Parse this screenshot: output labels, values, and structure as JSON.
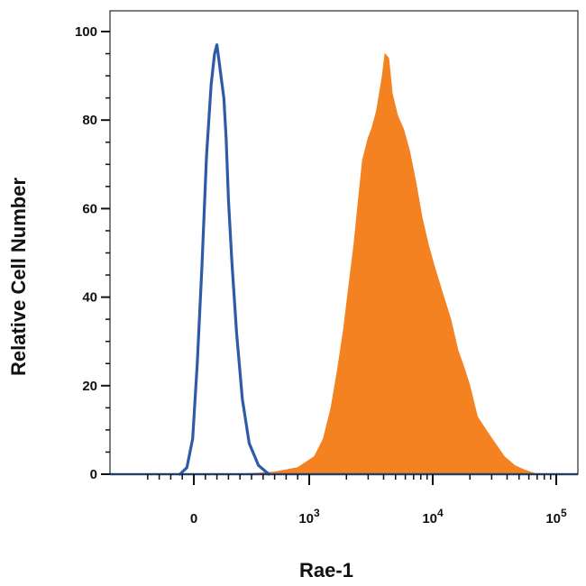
{
  "chart_data": {
    "type": "area",
    "title": "",
    "xlabel": "Rae-1",
    "ylabel": "Relative Cell Number",
    "x_scale": "biexponential",
    "xlim": [
      -500,
      200000
    ],
    "ylim": [
      0,
      100
    ],
    "y_ticks": [
      {
        "value": 0,
        "label": "0"
      },
      {
        "value": 20,
        "label": "20"
      },
      {
        "value": 40,
        "label": "40"
      },
      {
        "value": 60,
        "label": "60"
      },
      {
        "value": 80,
        "label": "80"
      },
      {
        "value": 100,
        "label": "100"
      }
    ],
    "x_ticks": [
      {
        "value": 0,
        "base": "0",
        "exp": ""
      },
      {
        "value": 1000,
        "base": "10",
        "exp": "3"
      },
      {
        "value": 10000,
        "base": "10",
        "exp": "4"
      },
      {
        "value": 100000,
        "base": "10",
        "exp": "5"
      }
    ],
    "grid": false,
    "legend": "none",
    "series": [
      {
        "style": "filled",
        "color": "#f58220",
        "x": [
          400,
          700,
          900,
          1100,
          1300,
          1500,
          1700,
          1900,
          2100,
          2300,
          2500,
          2700,
          3000,
          3200,
          3500,
          3700,
          3900,
          4100,
          4400,
          4700,
          5200,
          5800,
          6500,
          7300,
          8200,
          9200,
          10300,
          12000,
          14000,
          16000,
          18000,
          20000,
          23000,
          27000,
          32000,
          38000,
          46000,
          55000,
          70000
        ],
        "y": [
          0,
          0.5,
          1.5,
          4,
          8,
          15,
          24,
          33,
          43,
          52,
          62,
          71,
          76,
          78,
          82,
          86,
          90,
          95,
          94,
          86,
          81,
          78,
          73,
          66,
          58,
          52,
          47,
          41,
          35,
          28,
          24,
          20,
          13,
          10,
          7,
          4,
          2,
          1,
          0
        ]
      },
      {
        "style": "outline",
        "color": "#2e5ba8",
        "x": [
          -120,
          -60,
          -10,
          30,
          70,
          110,
          150,
          180,
          200,
          220,
          240,
          260,
          280,
          300,
          330,
          370,
          420,
          480,
          560,
          650
        ],
        "y": [
          0,
          1.5,
          8,
          25,
          47,
          72,
          88,
          95,
          97,
          93,
          89,
          85,
          76,
          62,
          48,
          32,
          17,
          7,
          2,
          0
        ]
      }
    ]
  }
}
